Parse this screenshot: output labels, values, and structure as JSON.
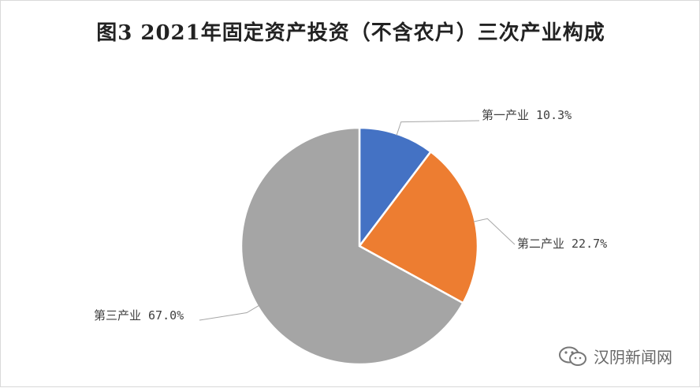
{
  "chart_data": {
    "type": "pie",
    "title": "图3 2021年固定资产投资（不含农户）三次产业构成",
    "slices": [
      {
        "name": "第一产业",
        "value": 10.3,
        "label": "第一产业 10.3%",
        "color": "#4472c4"
      },
      {
        "name": "第二产业",
        "value": 22.7,
        "label": "第二产业 22.7%",
        "color": "#ed7d31"
      },
      {
        "name": "第三产业",
        "value": 67.0,
        "label": "第三产业 67.0%",
        "color": "#a5a5a5"
      }
    ],
    "legend": "none"
  },
  "watermark": {
    "text": "汉阴新闻网",
    "icon": "wechat-icon"
  }
}
